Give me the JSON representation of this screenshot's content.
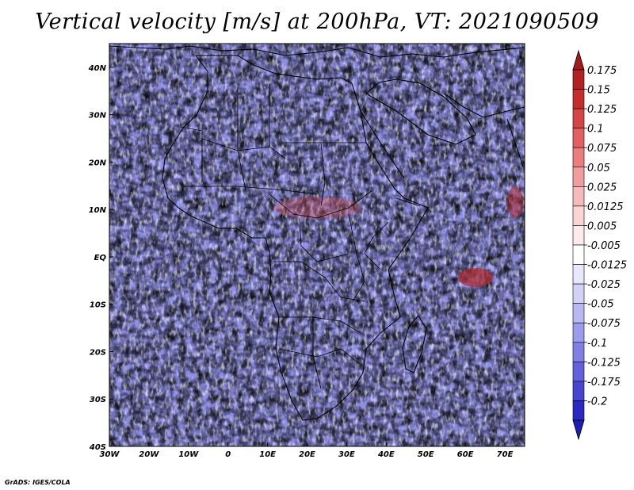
{
  "title": "Vertical velocity [m/s] at 200hPa, VT: 2021090509",
  "footer_credit": "GrADS: IGES/COLA",
  "map": {
    "variable": "Vertical velocity",
    "units": "m/s",
    "level": "200hPa",
    "valid_time": "2021090509",
    "lon_range": [
      -30,
      75
    ],
    "lat_range": [
      -40,
      45
    ],
    "lon_ticks": [
      {
        "value": -30,
        "label": "30W"
      },
      {
        "value": -20,
        "label": "20W"
      },
      {
        "value": -10,
        "label": "10W"
      },
      {
        "value": 0,
        "label": "0"
      },
      {
        "value": 10,
        "label": "10E"
      },
      {
        "value": 20,
        "label": "20E"
      },
      {
        "value": 30,
        "label": "30E"
      },
      {
        "value": 40,
        "label": "40E"
      },
      {
        "value": 50,
        "label": "50E"
      },
      {
        "value": 60,
        "label": "60E"
      },
      {
        "value": 70,
        "label": "70E"
      }
    ],
    "lat_ticks": [
      {
        "value": 40,
        "label": "40N"
      },
      {
        "value": 30,
        "label": "30N"
      },
      {
        "value": 20,
        "label": "20N"
      },
      {
        "value": 10,
        "label": "10N"
      },
      {
        "value": 0,
        "label": "EQ"
      },
      {
        "value": -10,
        "label": "10S"
      },
      {
        "value": -20,
        "label": "20S"
      },
      {
        "value": -30,
        "label": "30S"
      },
      {
        "value": -40,
        "label": "40S"
      }
    ]
  },
  "colorbar": {
    "levels": [
      {
        "label": "0.175",
        "color": "#b22222"
      },
      {
        "label": "0.15",
        "color": "#c52d2d"
      },
      {
        "label": "0.125",
        "color": "#d64545"
      },
      {
        "label": "0.1",
        "color": "#e26060"
      },
      {
        "label": "0.075",
        "color": "#ec7e7e"
      },
      {
        "label": "0.05",
        "color": "#f29d9d"
      },
      {
        "label": "0.025",
        "color": "#f7baba"
      },
      {
        "label": "0.0125",
        "color": "#fbd4d4"
      },
      {
        "label": "0.005",
        "color": "#fdeaea"
      },
      {
        "label": "-0.005",
        "color": "#ffffff"
      },
      {
        "label": "-0.0125",
        "color": "#e8e8fb"
      },
      {
        "label": "-0.025",
        "color": "#d2d2f7"
      },
      {
        "label": "-0.05",
        "color": "#b8b8f2"
      },
      {
        "label": "-0.075",
        "color": "#9c9cec"
      },
      {
        "label": "-0.1",
        "color": "#8080e4"
      },
      {
        "label": "-0.125",
        "color": "#6262dc"
      },
      {
        "label": "-0.175",
        "color": "#4545d0"
      },
      {
        "label": "-0.2",
        "color": "#2a2ac2"
      }
    ],
    "top_cap_color": "#a01c1c",
    "bottom_cap_color": "#1e1eb0"
  }
}
